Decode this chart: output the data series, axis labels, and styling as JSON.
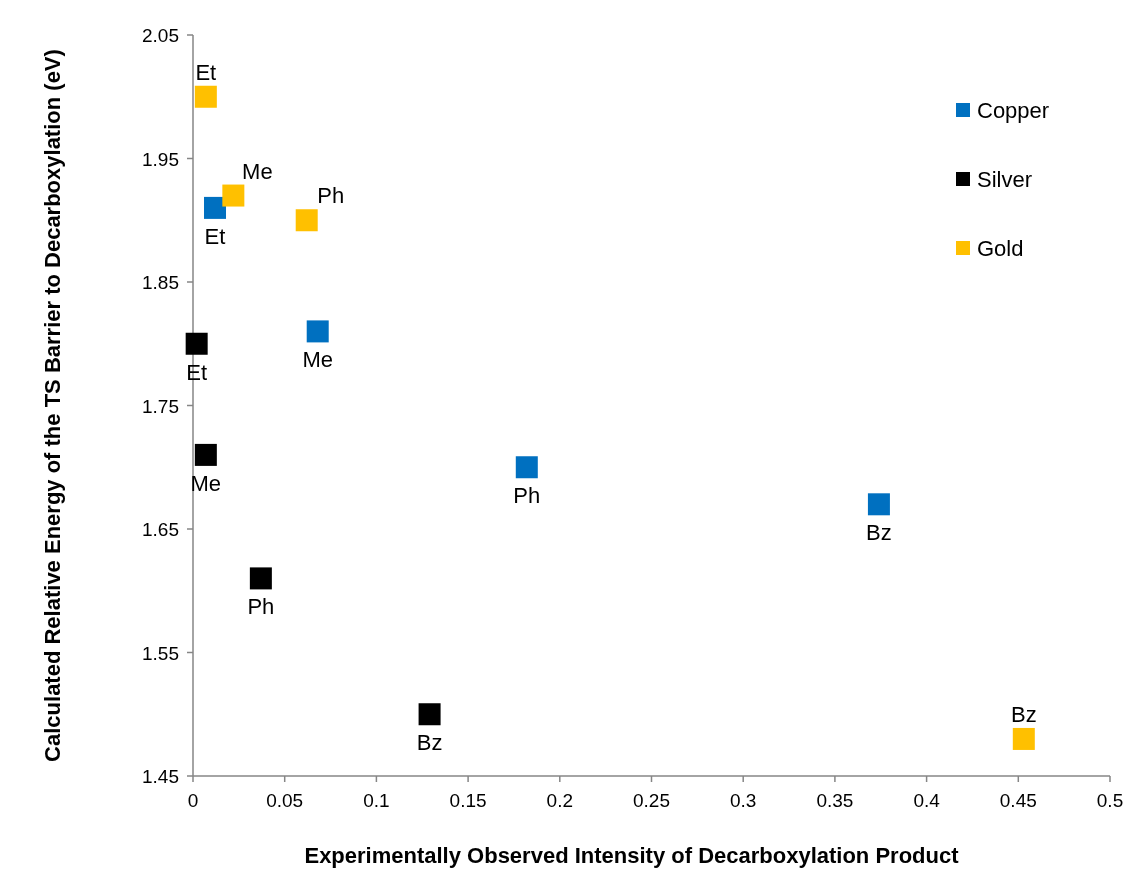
{
  "chart_data": {
    "type": "scatter",
    "xlabel": "Experimentally Observed Intensity of Decarboxylation Product",
    "ylabel": "Calculated Relative Energy of the TS Barrier to Decarboxylation (eV)",
    "xlim": [
      0,
      0.5
    ],
    "xticks": [
      0,
      0.05,
      0.1,
      0.15,
      0.2,
      0.25,
      0.3,
      0.35,
      0.4,
      0.45,
      0.5
    ],
    "ylim": [
      1.45,
      2.05
    ],
    "yticks": [
      1.45,
      1.55,
      1.65,
      1.75,
      1.85,
      1.95,
      2.05
    ],
    "grid": false,
    "legend": "top right",
    "marker": "square",
    "series": [
      {
        "name": "Copper",
        "color": "#0070c0",
        "x": [
          0.012,
          0.068,
          0.182,
          0.374
        ],
        "values": [
          1.91,
          1.81,
          1.7,
          1.67
        ],
        "value_labels": [
          "Et",
          "Me",
          "Ph",
          "Bz"
        ]
      },
      {
        "name": "Silver",
        "color": "#000000",
        "x": [
          0.002,
          0.007,
          0.037,
          0.129
        ],
        "values": [
          1.8,
          1.71,
          1.61,
          1.5
        ],
        "value_labels": [
          "Et",
          "Me",
          "Ph",
          "Bz"
        ]
      },
      {
        "name": "Gold",
        "color": "#ffc000",
        "x": [
          0.007,
          0.022,
          0.062,
          0.453
        ],
        "values": [
          2.0,
          1.92,
          1.9,
          1.48
        ],
        "value_labels": [
          "Et",
          "Me",
          "Ph",
          "Bz"
        ]
      }
    ]
  }
}
